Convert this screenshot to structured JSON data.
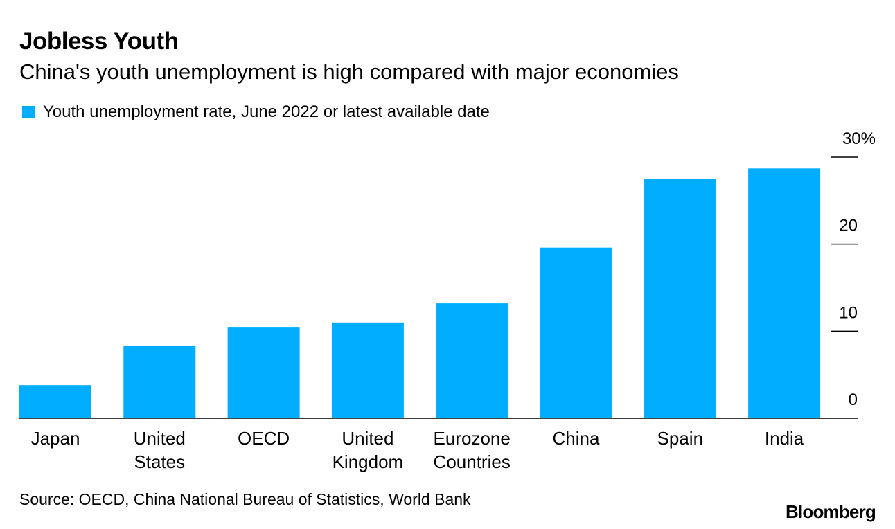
{
  "header": {
    "title": "Jobless Youth",
    "subtitle": "China's youth unemployment is high compared with major economies"
  },
  "legend": {
    "label": "Youth unemployment rate, June 2022 or latest available date"
  },
  "footer": {
    "source": "Source: OECD, China National Bureau of Statistics, World Bank",
    "brand": "Bloomberg"
  },
  "colors": {
    "bar": "#00ADFF",
    "axis": "#000000",
    "text": "#000000"
  },
  "chart_data": {
    "type": "bar",
    "title": "Jobless Youth",
    "subtitle": "China's youth unemployment is high compared with major economies",
    "series_name": "Youth unemployment rate, June 2022 or latest available date",
    "categories": [
      [
        "Japan"
      ],
      [
        "United",
        "States"
      ],
      [
        "OECD"
      ],
      [
        "United",
        "Kingdom"
      ],
      [
        "Eurozone",
        "Countries"
      ],
      [
        "China"
      ],
      [
        "Spain"
      ],
      [
        "India"
      ]
    ],
    "values": [
      3.8,
      8.3,
      10.5,
      11.0,
      13.2,
      19.6,
      27.5,
      28.7
    ],
    "ylim": [
      0,
      30
    ],
    "yticks": [
      {
        "value": 0,
        "label": "0"
      },
      {
        "value": 10,
        "label": "10"
      },
      {
        "value": 20,
        "label": "20"
      },
      {
        "value": 30,
        "label": "30%"
      }
    ],
    "y_axis_side": "right",
    "xlabel": "",
    "ylabel": "",
    "grid": false
  }
}
